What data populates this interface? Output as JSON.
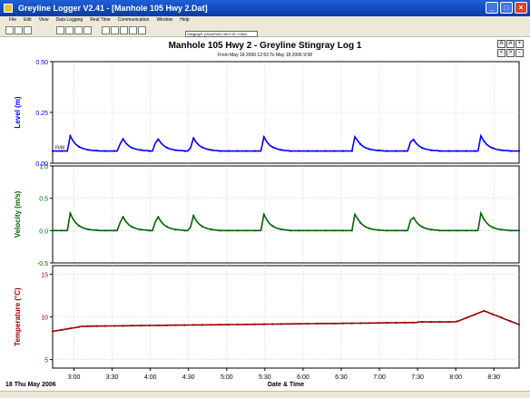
{
  "window": {
    "title": "Greyline Logger V2.41 - [Manhole 105 Hwy 2.Dat]",
    "minimize_glyph": "_",
    "maximize_glyph": "□",
    "close_glyph": "×"
  },
  "menu": [
    "File",
    "Edit",
    "View",
    "Data Logging",
    "Real Time",
    "Communication",
    "Window",
    "Help"
  ],
  "toolbar": {
    "selector_value": "Stingray® (Velo/Pore) Ver1.00 +Vbus"
  },
  "right_tools": [
    "A",
    "A",
    "+",
    "<",
    ">",
    "-"
  ],
  "chart_data": [
    {
      "type": "line",
      "title": "Manhole 105 Hwy 2 - Greyline Stingray Log 1",
      "subtitle": "From May 18 2006 12:53 To May 18 2006 9:58",
      "ylabel": "Level (m)",
      "ylim": [
        0,
        0.5
      ],
      "yticks": [
        "0.50",
        "0.25",
        "0.00"
      ],
      "ytick_values": [
        0.5,
        0.25,
        0.0
      ],
      "color": "#0000ff",
      "baseline": 0.06,
      "peak": 0.135,
      "annotation": "Ft/M",
      "series": [
        {
          "values": []
        }
      ]
    },
    {
      "type": "line",
      "ylabel": "Velocity (m/s)",
      "ylim": [
        -0.5,
        1.0
      ],
      "yticks": [
        "1.0",
        "0.5",
        "0.0",
        "-0.5"
      ],
      "ytick_values": [
        1.0,
        0.5,
        0.0,
        -0.5
      ],
      "color": "#006400",
      "baseline": 0.0,
      "peak": 0.27,
      "series": [
        {
          "values": []
        }
      ]
    },
    {
      "type": "line",
      "ylabel": "Temperature (°C)",
      "ylim": [
        4,
        16
      ],
      "yticks": [
        "15",
        "10",
        "5"
      ],
      "ytick_values": [
        15,
        10,
        5
      ],
      "color": "#990000",
      "series": [
        {
          "values": []
        }
      ]
    }
  ],
  "x_axis": {
    "label": "Date & Time",
    "date_label": "18 Thu May 2006",
    "ticks": [
      "3:00",
      "3:30",
      "4:00",
      "4:30",
      "5:00",
      "5:30",
      "6:00",
      "6:30",
      "7:00",
      "7:30",
      "8:00",
      "8:30"
    ],
    "tick_hours": [
      3.0,
      3.5,
      4.0,
      4.5,
      5.0,
      5.5,
      6.0,
      6.5,
      7.0,
      7.5,
      8.0,
      8.5
    ],
    "range_hours": [
      2.72,
      8.83
    ]
  },
  "events_hours": [
    2.95,
    3.62,
    4.08,
    4.55,
    5.48,
    6.68,
    7.42,
    8.33
  ]
}
